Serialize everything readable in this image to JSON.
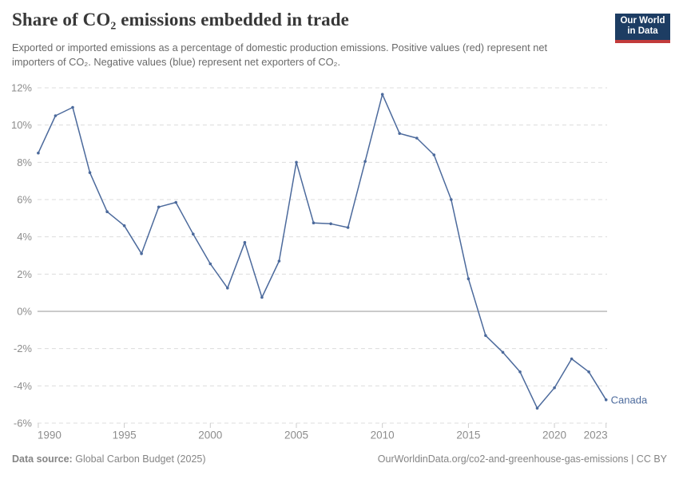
{
  "header": {
    "title": "Share of CO₂ emissions embedded in trade",
    "subtitle": "Exported or imported emissions as a percentage of domestic production emissions. Positive values (red) represent net importers of CO₂. Negative values (blue) represent net exporters of CO₂.",
    "logo": {
      "line1": "Our World",
      "line2": "in Data"
    }
  },
  "chart_data": {
    "type": "line",
    "title": "Share of CO₂ emissions embedded in trade",
    "series": [
      {
        "name": "Canada",
        "color": "#4C6A9C",
        "x": [
          1990,
          1991,
          1992,
          1993,
          1994,
          1995,
          1996,
          1997,
          1998,
          1999,
          2000,
          2001,
          2002,
          2003,
          2004,
          2005,
          2006,
          2007,
          2008,
          2009,
          2010,
          2011,
          2012,
          2013,
          2014,
          2015,
          2016,
          2017,
          2018,
          2019,
          2020,
          2021,
          2022,
          2023
        ],
        "values": [
          8.5,
          10.5,
          10.95,
          7.45,
          5.35,
          4.6,
          3.1,
          5.6,
          5.85,
          4.15,
          2.55,
          1.25,
          3.7,
          0.75,
          2.7,
          8.0,
          4.75,
          4.7,
          4.5,
          8.05,
          11.65,
          9.55,
          9.3,
          8.4,
          6.0,
          1.75,
          -1.3,
          -2.2,
          -3.25,
          -5.2,
          -4.1,
          -2.55,
          -3.25,
          -4.75
        ]
      }
    ],
    "x_ticks": [
      1990,
      1995,
      2000,
      2005,
      2010,
      2015,
      2020,
      2023
    ],
    "y_ticks": [
      12,
      10,
      8,
      6,
      4,
      2,
      0,
      -2,
      -4,
      -6
    ],
    "y_tick_suffix": "%",
    "xlim": [
      1990,
      2023
    ],
    "ylim": [
      -6,
      12
    ],
    "grid": true,
    "legend_position": "end-of-line",
    "end_label": "Canada"
  },
  "footer": {
    "datasource_label": "Data source:",
    "datasource_value": "Global Carbon Budget (2025)",
    "attribution": "OurWorldinData.org/co2-and-greenhouse-gas-emissions | CC BY"
  },
  "colors": {
    "line": "#4C6A9C",
    "grid": "#dcdcdc",
    "zero_line": "#969696",
    "tick": "#cccccc",
    "axis_text": "#8d8d8d",
    "title_text": "#383838",
    "subtitle_text": "#6a6a6a",
    "logo_bg": "#1d3d63",
    "logo_accent": "#c23b3b"
  }
}
